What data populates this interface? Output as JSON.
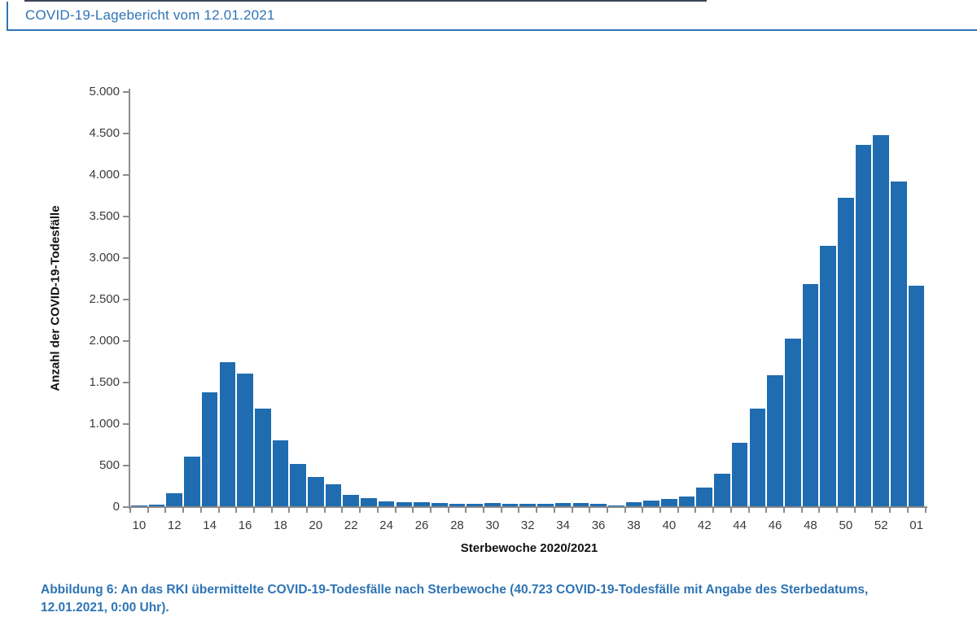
{
  "header": {
    "title": "COVID-19-Lagebericht vom 12.01.2021"
  },
  "chart_data": {
    "type": "bar",
    "title": "",
    "xlabel": "Sterbewoche 2020/2021",
    "ylabel": "Anzahl der COVID-19-Todesfälle",
    "ylim": [
      0,
      5000
    ],
    "grid": false,
    "legend": false,
    "bar_color": "#1F6CB0",
    "axis_color": "#8C8C8C",
    "categories": [
      "10",
      "11",
      "12",
      "13",
      "14",
      "15",
      "16",
      "17",
      "18",
      "19",
      "20",
      "21",
      "22",
      "23",
      "24",
      "25",
      "26",
      "27",
      "28",
      "29",
      "30",
      "31",
      "32",
      "33",
      "34",
      "35",
      "36",
      "37",
      "38",
      "39",
      "40",
      "41",
      "42",
      "43",
      "44",
      "45",
      "46",
      "47",
      "48",
      "49",
      "50",
      "51",
      "52",
      "53",
      "01"
    ],
    "values": [
      5,
      20,
      160,
      600,
      1370,
      1740,
      1600,
      1180,
      790,
      510,
      350,
      260,
      140,
      100,
      60,
      50,
      45,
      40,
      30,
      25,
      35,
      30,
      28,
      25,
      38,
      38,
      28,
      10,
      50,
      65,
      90,
      121,
      230,
      390,
      760,
      1180,
      1580,
      2020,
      2680,
      3140,
      3720,
      4350,
      4470,
      3910,
      2660
    ],
    "labeled_categories": [
      "10",
      "12",
      "14",
      "16",
      "18",
      "20",
      "22",
      "24",
      "26",
      "28",
      "30",
      "32",
      "34",
      "36",
      "38",
      "40",
      "42",
      "44",
      "46",
      "48",
      "50",
      "52",
      "01"
    ],
    "y_tick_labels": [
      "0",
      "500",
      "1.000",
      "1.500",
      "2.000",
      "2.500",
      "3.000",
      "3.500",
      "4.000",
      "4.500",
      "5.000"
    ],
    "y_tick_values": [
      0,
      500,
      1000,
      1500,
      2000,
      2500,
      3000,
      3500,
      4000,
      4500,
      5000
    ]
  },
  "caption": {
    "line1": "Abbildung 6: An das RKI übermittelte COVID-19-Todesfälle nach Sterbewoche (40.723 COVID-19-Todesfälle mit Angabe des Sterbedatums,",
    "line2": "12.01.2021, 0:00 Uhr).",
    "total_deaths": "40.723"
  },
  "colors": {
    "accent_blue": "#2E74B5",
    "bar_blue": "#1F6CB0",
    "axis_grey": "#8C8C8C"
  }
}
